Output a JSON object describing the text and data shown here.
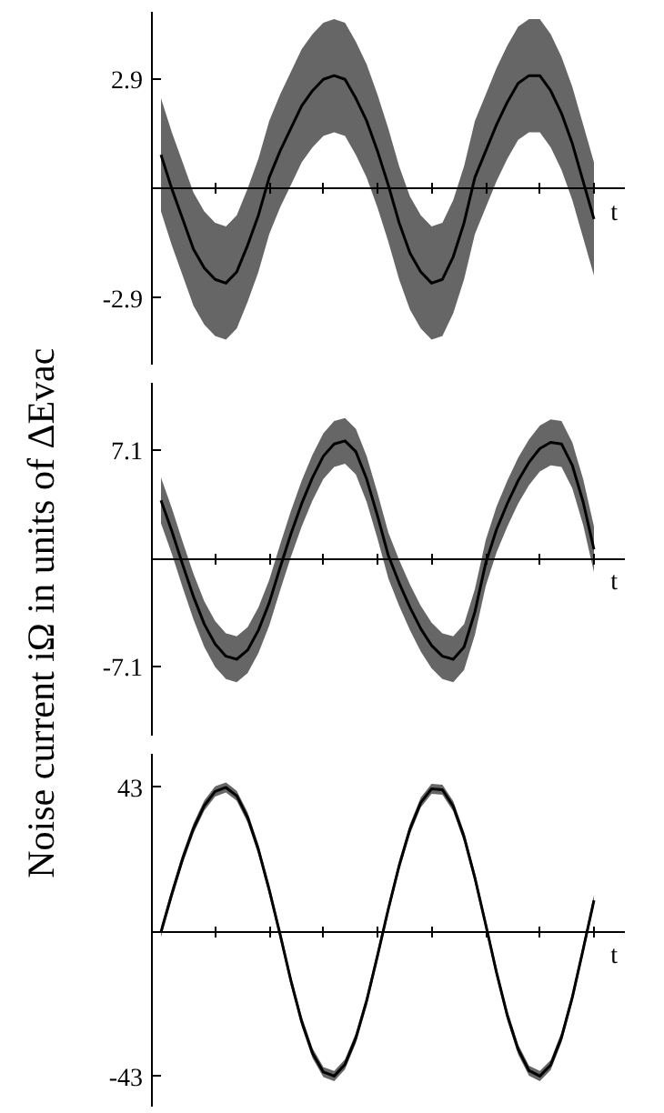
{
  "chart_data": [
    {
      "type": "line",
      "xlabel": "t",
      "tick_labels": "y",
      "categories": [
        null,
        null,
        null,
        null,
        null,
        null,
        null,
        null,
        null,
        null,
        null,
        null,
        null,
        null,
        null,
        null,
        null,
        null,
        null,
        null,
        null,
        null,
        null,
        null,
        null,
        null,
        null,
        null,
        null,
        null,
        null,
        null,
        null,
        null,
        null,
        null,
        null,
        null,
        null,
        null,
        null
      ],
      "ylim": [
        -4.66,
        4.69
      ],
      "yticks": [
        -2.9,
        2.9
      ],
      "grid": false,
      "series": [
        {
          "color": "#000000",
          "values": [
            0.9,
            0.0,
            -0.8,
            -1.6,
            -2.1,
            -2.4,
            -2.5,
            -2.2,
            -1.5,
            -0.7,
            0.3,
            1.0,
            1.6,
            2.2,
            2.6,
            2.9,
            3.0,
            2.9,
            2.4,
            1.8,
            1.0,
            0.1,
            -0.9,
            -1.7,
            -2.2,
            -2.5,
            -2.4,
            -1.8,
            -0.9,
            0.3,
            1.0,
            1.7,
            2.3,
            2.8,
            3.0,
            3.0,
            2.6,
            2.0,
            1.2,
            0.2,
            -0.8
          ],
          "lower": [
            -0.6,
            -1.5,
            -2.3,
            -3.1,
            -3.6,
            -3.9,
            -4.0,
            -3.7,
            -3.0,
            -2.2,
            -1.2,
            -0.5,
            0.1,
            0.7,
            1.1,
            1.4,
            1.5,
            1.4,
            0.9,
            0.3,
            -0.5,
            -1.4,
            -2.4,
            -3.2,
            -3.7,
            -4.0,
            -3.9,
            -3.3,
            -2.4,
            -1.2,
            -0.5,
            0.2,
            0.8,
            1.3,
            1.5,
            1.5,
            1.1,
            0.5,
            -0.3,
            -1.3,
            -2.3
          ],
          "upper": [
            2.4,
            1.5,
            0.7,
            -0.1,
            -0.6,
            -0.9,
            -1.0,
            -0.7,
            0.0,
            0.8,
            1.8,
            2.5,
            3.1,
            3.7,
            4.1,
            4.4,
            4.5,
            4.4,
            3.9,
            3.3,
            2.5,
            1.6,
            0.6,
            -0.2,
            -0.7,
            -1.0,
            -0.9,
            -0.3,
            0.6,
            1.8,
            2.5,
            3.2,
            3.8,
            4.3,
            4.5,
            4.5,
            4.1,
            3.5,
            2.7,
            1.7,
            0.7
          ]
        }
      ]
    },
    {
      "type": "line",
      "xlabel": "t",
      "ylabel": "Noise current iΩ in units of ΔEvac",
      "tick_labels": "y",
      "categories": [
        null,
        null,
        null,
        null,
        null,
        null,
        null,
        null,
        null,
        null,
        null,
        null,
        null,
        null,
        null,
        null,
        null,
        null,
        null,
        null,
        null,
        null,
        null,
        null,
        null,
        null,
        null,
        null,
        null,
        null,
        null,
        null,
        null,
        null,
        null,
        null,
        null,
        null,
        null,
        null,
        null
      ],
      "ylim": [
        -11.6,
        11.5
      ],
      "yticks": [
        -7.1,
        7.1
      ],
      "grid": false,
      "series": [
        {
          "color": "#000000",
          "values": [
            3.8,
            1.8,
            -0.4,
            -2.5,
            -4.3,
            -5.6,
            -6.4,
            -6.6,
            -6.0,
            -4.7,
            -2.9,
            -0.6,
            1.6,
            3.6,
            5.3,
            6.7,
            7.5,
            7.7,
            7.0,
            5.2,
            2.8,
            0.2,
            -1.6,
            -3.2,
            -4.6,
            -5.7,
            -6.4,
            -6.6,
            -5.8,
            -3.5,
            -0.3,
            1.9,
            3.6,
            5.1,
            6.3,
            7.2,
            7.6,
            7.5,
            6.1,
            3.7,
            0.6
          ],
          "lower": [
            2.3,
            0.3,
            -1.9,
            -4.0,
            -5.8,
            -7.1,
            -7.9,
            -8.1,
            -7.5,
            -6.2,
            -4.4,
            -2.1,
            0.1,
            2.1,
            3.8,
            5.2,
            6.0,
            6.2,
            5.5,
            3.7,
            1.3,
            -1.3,
            -3.1,
            -4.7,
            -6.1,
            -7.2,
            -7.9,
            -8.1,
            -7.3,
            -5.0,
            -1.8,
            0.4,
            2.1,
            3.6,
            4.8,
            5.7,
            6.1,
            6.0,
            4.6,
            2.2,
            -0.9
          ],
          "upper": [
            5.3,
            3.3,
            1.1,
            -1.0,
            -2.8,
            -4.1,
            -4.9,
            -5.1,
            -4.5,
            -3.2,
            -1.4,
            0.9,
            3.1,
            5.1,
            6.8,
            8.2,
            9.0,
            9.2,
            8.5,
            6.7,
            4.3,
            1.7,
            -0.1,
            -1.7,
            -3.1,
            -4.2,
            -4.9,
            -5.1,
            -4.3,
            -2.0,
            1.2,
            3.4,
            5.1,
            6.6,
            7.8,
            8.7,
            9.1,
            9.0,
            7.6,
            5.2,
            2.1
          ]
        }
      ]
    },
    {
      "type": "line",
      "xlabel": "t",
      "tick_labels": "y",
      "categories": [
        null,
        null,
        null,
        null,
        null,
        null,
        null,
        null,
        null,
        null,
        null,
        null,
        null,
        null,
        null,
        null,
        null,
        null,
        null,
        null,
        null,
        null,
        null,
        null,
        null,
        null,
        null,
        null,
        null,
        null,
        null,
        null,
        null,
        null,
        null,
        null,
        null,
        null,
        null,
        null,
        null
      ],
      "ylim": [
        -52,
        53
      ],
      "yticks": [
        -43,
        43
      ],
      "grid": false,
      "series": [
        {
          "color": "#000000",
          "values": [
            0.0,
            11.3,
            21.8,
            30.8,
            37.6,
            41.8,
            43.0,
            40.5,
            34.1,
            24.5,
            12.5,
            -0.7,
            -14.5,
            -26.7,
            -36.1,
            -41.7,
            -42.9,
            -39.4,
            -31.6,
            -20.5,
            -7.1,
            6.8,
            19.7,
            30.6,
            38.5,
            42.6,
            42.3,
            37.4,
            28.3,
            16.1,
            2.2,
            -12.1,
            -24.9,
            -35.0,
            -41.3,
            -42.9,
            -39.6,
            -31.4,
            -19.5,
            -5.2,
            9.4
          ],
          "lower": [
            -1.5,
            9.8,
            20.3,
            29.3,
            36.1,
            40.3,
            41.5,
            39.0,
            32.6,
            23.0,
            11.0,
            -2.2,
            -16.0,
            -28.2,
            -37.6,
            -43.2,
            -44.4,
            -40.9,
            -33.1,
            -22.0,
            -8.6,
            5.3,
            18.2,
            29.1,
            37.0,
            41.1,
            40.8,
            35.9,
            26.8,
            14.6,
            0.7,
            -13.6,
            -26.4,
            -36.5,
            -42.8,
            -44.4,
            -41.1,
            -32.9,
            -21.0,
            -6.7,
            7.9
          ],
          "upper": [
            1.5,
            12.8,
            23.3,
            32.3,
            39.1,
            43.3,
            44.5,
            42.0,
            35.6,
            26.0,
            14.0,
            0.8,
            -13.0,
            -25.2,
            -34.6,
            -40.2,
            -41.4,
            -37.9,
            -30.1,
            -19.0,
            -5.6,
            8.3,
            21.2,
            32.1,
            40.0,
            44.1,
            43.8,
            38.9,
            29.8,
            17.6,
            3.7,
            -10.6,
            -23.4,
            -33.5,
            -39.8,
            -41.4,
            -38.1,
            -29.9,
            -18.0,
            -3.7,
            10.9
          ]
        }
      ]
    }
  ]
}
